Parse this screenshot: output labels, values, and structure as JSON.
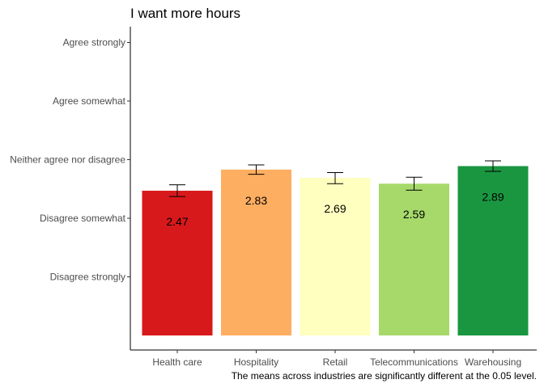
{
  "chart_data": {
    "type": "bar",
    "title": "I want more hours",
    "caption": "The means across industries are significantly different at the 0.05 level.",
    "xlabel": "",
    "ylabel": "",
    "categories": [
      "Health care",
      "Hospitality",
      "Retail",
      "Telecommunications",
      "Warehousing"
    ],
    "values": [
      2.47,
      2.83,
      2.69,
      2.59,
      2.89
    ],
    "value_labels": [
      "2.47",
      "2.83",
      "2.69",
      "2.59",
      "2.89"
    ],
    "error_low": [
      2.37,
      2.75,
      2.59,
      2.48,
      2.8
    ],
    "error_high": [
      2.57,
      2.91,
      2.78,
      2.7,
      2.98
    ],
    "colors": [
      "#d7191c",
      "#fdae61",
      "#ffffbf",
      "#a6d96a",
      "#1a9641"
    ],
    "y_ticks": [
      {
        "value": 1,
        "label": "Disagree strongly"
      },
      {
        "value": 2,
        "label": "Disagree somewhat"
      },
      {
        "value": 3,
        "label": "Neither agree nor disagree"
      },
      {
        "value": 4,
        "label": "Agree somewhat"
      },
      {
        "value": 5,
        "label": "Agree strongly"
      }
    ],
    "ylim": [
      0,
      5.25
    ],
    "grid": false,
    "legend": "none"
  }
}
